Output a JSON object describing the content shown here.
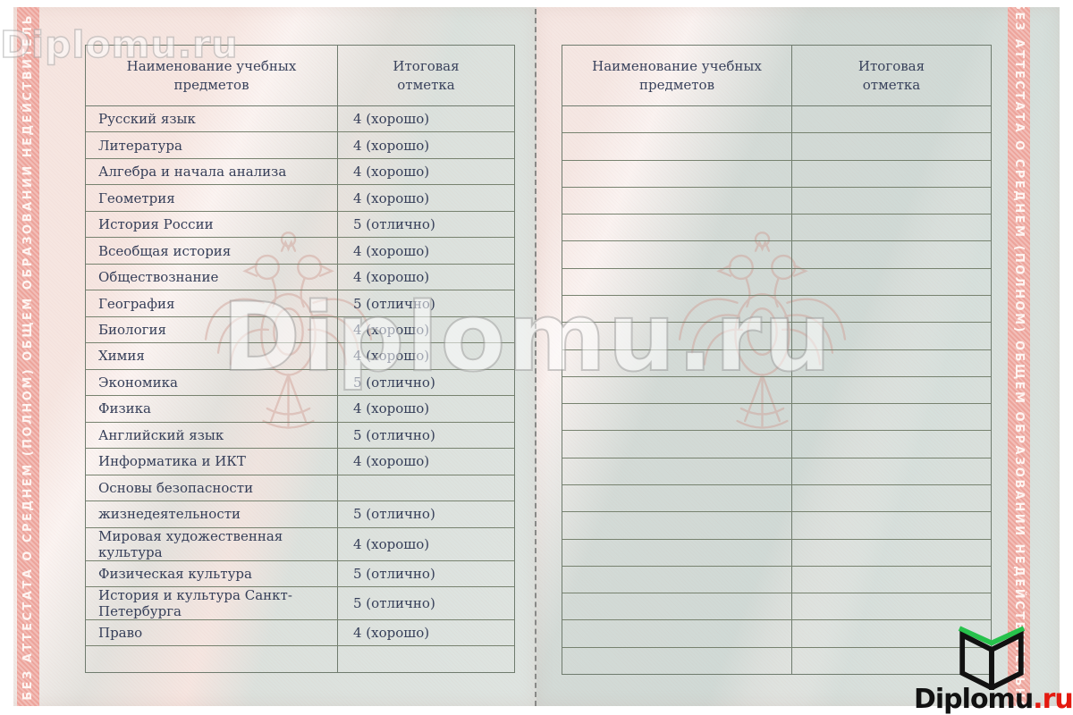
{
  "document_type": "school-certificate-appendix-scan",
  "security_strips": {
    "left_text": "БЕЗ АТТЕСТАТА О СРЕДНЕМ (ПОЛНОМ) ОБЩЕМ ОБРАЗОВАНИИ НЕДЕЙСТВИТЕЛЬ",
    "right_text": "БЕЗ АТТЕСТАТА О СРЕДНЕМ (ПОЛНОМ) ОБЩЕМ ОБРАЗОВАНИИ НЕДЕЙСТВИТЕЛЬНО",
    "strip_color": "#eda49b",
    "text_color": "#ffffff"
  },
  "left_page": {
    "table": {
      "headers": {
        "subject": "Наименование учебных предметов",
        "grade": "Итоговая отметка"
      },
      "rows": [
        {
          "subject": "Русский язык",
          "grade": "4 (хорошо)"
        },
        {
          "subject": "Литература",
          "grade": "4 (хорошо)"
        },
        {
          "subject": "Алгебра и начала анализа",
          "grade": "4 (хорошо)"
        },
        {
          "subject": "Геометрия",
          "grade": "4 (хорошо)"
        },
        {
          "subject": "История России",
          "grade": "5 (отлично)"
        },
        {
          "subject": "Всеобщая история",
          "grade": "4 (хорошо)"
        },
        {
          "subject": "Обществознание",
          "grade": "4 (хорошо)"
        },
        {
          "subject": "География",
          "grade": "5 (отлично)"
        },
        {
          "subject": "Биология",
          "grade": "4 (хорошо)"
        },
        {
          "subject": "Химия",
          "grade": "4 (хорошо)"
        },
        {
          "subject": "Экономика",
          "grade": "5 (отлично)"
        },
        {
          "subject": "Физика",
          "grade": "4 (хорошо)"
        },
        {
          "subject": "Английский язык",
          "grade": "5 (отлично)"
        },
        {
          "subject": "Информатика и ИКТ",
          "grade": "4 (хорошо)"
        },
        {
          "subject": "Основы безопасности",
          "grade": ""
        },
        {
          "subject": "жизнедеятельности",
          "grade": "5 (отлично)"
        },
        {
          "subject": "Мировая художественная культура",
          "grade": "4 (хорошо)"
        },
        {
          "subject": "Физическая культура",
          "grade": "5 (отлично)"
        },
        {
          "subject": "История и культура Санкт-Петербурга",
          "grade": "5 (отлично)"
        },
        {
          "subject": "Право",
          "grade": "4 (хорошо)"
        },
        {
          "subject": "",
          "grade": ""
        }
      ]
    }
  },
  "right_page": {
    "table": {
      "headers": {
        "subject": "Наименование учебных предметов",
        "grade": "Итоговая отметка"
      },
      "empty_row_count": 21
    }
  },
  "watermarks": {
    "corner_text": "Diplomu.ru",
    "center_text": "Diplomu.ru"
  },
  "logo": {
    "text_black": "Diplomu",
    "text_red": ".ru",
    "icon": "open-book-icon",
    "red": "#e41a10",
    "green": "#27c24c"
  },
  "colors": {
    "page_pink": "#f6e6e1",
    "teal_band": "#c6d6d2",
    "table_line": "#6f7b6e",
    "ink": "#353e58",
    "emblem": "#cf9e94"
  }
}
